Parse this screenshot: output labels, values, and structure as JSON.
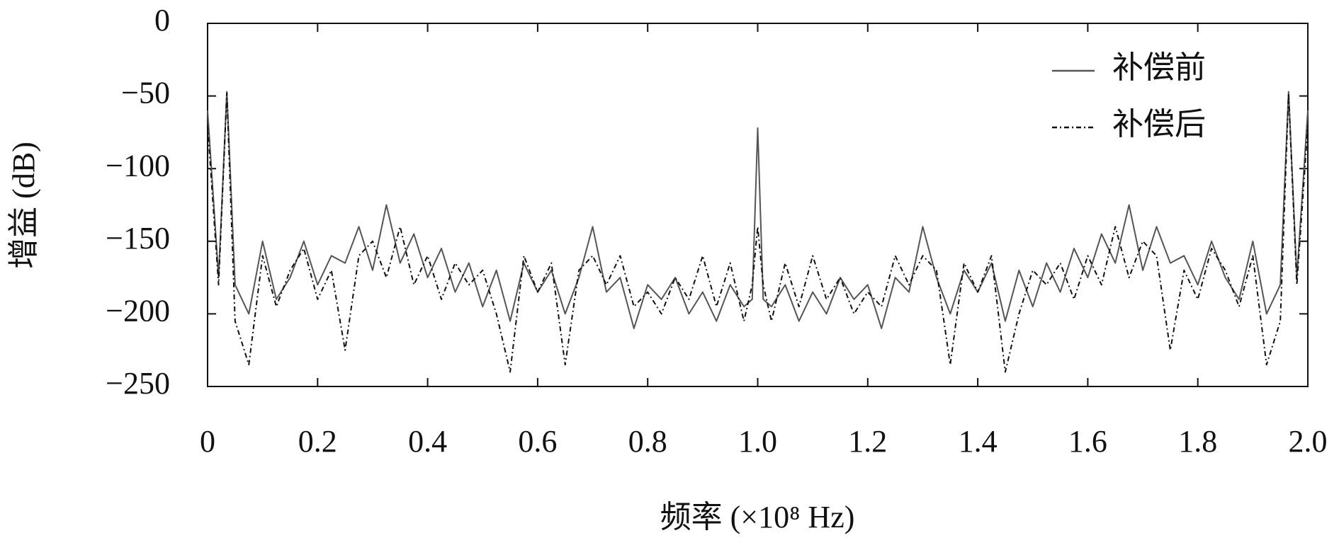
{
  "chart_data": {
    "type": "line",
    "xlabel": "频率 (×10⁸ Hz)",
    "ylabel": "增益 (dB)",
    "xlim": [
      0,
      2.0
    ],
    "ylim": [
      -250,
      0
    ],
    "xticks": [
      0,
      0.2,
      0.4,
      0.6,
      0.8,
      {
        "value": 1,
        "label": "1.0"
      },
      1.2,
      1.4,
      1.6,
      1.8,
      {
        "value": 2,
        "label": "2.0"
      }
    ],
    "yticks": [
      0,
      {
        "value": -50,
        "label": "−50"
      },
      {
        "value": -100,
        "label": "−100"
      },
      {
        "value": -150,
        "label": "−150"
      },
      {
        "value": -200,
        "label": "−200"
      },
      {
        "value": -250,
        "label": "−250"
      }
    ],
    "legend": "upper right",
    "x": [
      0,
      0.02,
      0.035,
      0.05,
      0.075,
      0.1,
      0.125,
      0.15,
      0.175,
      0.2,
      0.225,
      0.25,
      0.275,
      0.3,
      0.325,
      0.35,
      0.375,
      0.4,
      0.425,
      0.45,
      0.475,
      0.5,
      0.525,
      0.55,
      0.575,
      0.6,
      0.625,
      0.65,
      0.675,
      0.7,
      0.725,
      0.75,
      0.775,
      0.8,
      0.825,
      0.85,
      0.875,
      0.9,
      0.925,
      0.95,
      0.975,
      0.99,
      1.0,
      1.01,
      1.025,
      1.05,
      1.075,
      1.1,
      1.125,
      1.15,
      1.175,
      1.2,
      1.225,
      1.25,
      1.275,
      1.3,
      1.325,
      1.35,
      1.375,
      1.4,
      1.425,
      1.45,
      1.475,
      1.5,
      1.525,
      1.55,
      1.575,
      1.6,
      1.625,
      1.65,
      1.675,
      1.7,
      1.725,
      1.75,
      1.775,
      1.8,
      1.825,
      1.85,
      1.875,
      1.9,
      1.925,
      1.95,
      1.965,
      1.98,
      2.0
    ],
    "series": [
      {
        "name": "补偿前",
        "color": "#555555",
        "dash": "solid",
        "values": [
          -60,
          -175,
          -47,
          -180,
          -200,
          -150,
          -190,
          -175,
          -150,
          -180,
          -160,
          -165,
          -140,
          -170,
          -125,
          -165,
          -145,
          -175,
          -155,
          -185,
          -165,
          -195,
          -170,
          -205,
          -165,
          -185,
          -170,
          -200,
          -175,
          -140,
          -185,
          -175,
          -210,
          -180,
          -190,
          -175,
          -200,
          -185,
          -205,
          -180,
          -195,
          -190,
          -72,
          -190,
          -195,
          -180,
          -205,
          -185,
          -200,
          -175,
          -190,
          -180,
          -210,
          -175,
          -185,
          -140,
          -175,
          -200,
          -170,
          -185,
          -165,
          -205,
          -170,
          -195,
          -165,
          -185,
          -155,
          -175,
          -145,
          -165,
          -125,
          -170,
          -140,
          -165,
          -160,
          -180,
          -150,
          -175,
          -190,
          -150,
          -200,
          -180,
          -47,
          -175,
          -60
        ]
      },
      {
        "name": "补偿后",
        "color": "#111111",
        "dash": "dashdot",
        "values": [
          -70,
          -180,
          -48,
          -205,
          -235,
          -160,
          -195,
          -170,
          -155,
          -190,
          -170,
          -225,
          -160,
          -150,
          -175,
          -140,
          -180,
          -160,
          -190,
          -165,
          -180,
          -170,
          -200,
          -240,
          -160,
          -185,
          -165,
          -235,
          -170,
          -160,
          -180,
          -160,
          -195,
          -185,
          -200,
          -175,
          -190,
          -160,
          -195,
          -165,
          -205,
          -180,
          -140,
          -180,
          -205,
          -165,
          -195,
          -160,
          -190,
          -175,
          -200,
          -185,
          -195,
          -160,
          -180,
          -160,
          -170,
          -235,
          -165,
          -185,
          -160,
          -240,
          -200,
          -170,
          -180,
          -165,
          -190,
          -160,
          -180,
          -140,
          -175,
          -150,
          -160,
          -225,
          -170,
          -190,
          -155,
          -170,
          -195,
          -160,
          -235,
          -205,
          -48,
          -180,
          -70
        ]
      }
    ]
  }
}
